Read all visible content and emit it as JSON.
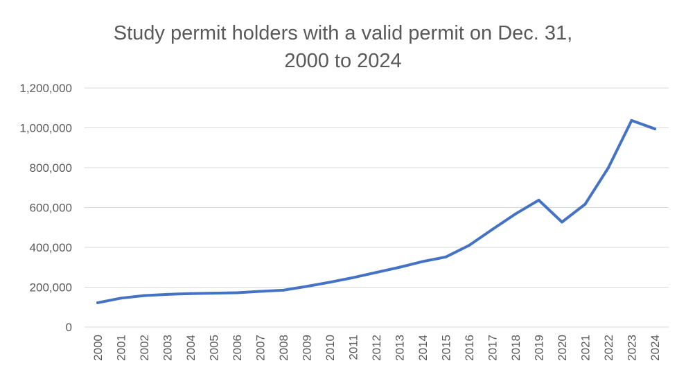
{
  "chart_data": {
    "type": "line",
    "title_lines": [
      "Study permit holders with a valid permit on Dec. 31,",
      "2000 to 2024"
    ],
    "xlabel": "",
    "ylabel": "",
    "ylim": [
      0,
      1200000
    ],
    "y_ticks": [
      0,
      200000,
      400000,
      600000,
      800000,
      1000000,
      1200000
    ],
    "y_tick_labels": [
      "0",
      "200,000",
      "400,000",
      "600,000",
      "800,000",
      "1,000,000",
      "1,200,000"
    ],
    "categories": [
      "2000",
      "2001",
      "2002",
      "2003",
      "2004",
      "2005",
      "2006",
      "2007",
      "2008",
      "2009",
      "2010",
      "2011",
      "2012",
      "2013",
      "2014",
      "2015",
      "2016",
      "2017",
      "2018",
      "2019",
      "2020",
      "2021",
      "2022",
      "2023",
      "2024"
    ],
    "series": [
      {
        "values": [
          122000,
          145000,
          158000,
          164000,
          168000,
          170000,
          172000,
          179000,
          185000,
          204000,
          225000,
          248000,
          274000,
          300000,
          329000,
          352000,
          410000,
          490000,
          568000,
          637000,
          527000,
          617000,
          800000,
          1037000,
          995000
        ],
        "color": "#4472c4"
      }
    ],
    "grid": true,
    "legend": "none"
  }
}
